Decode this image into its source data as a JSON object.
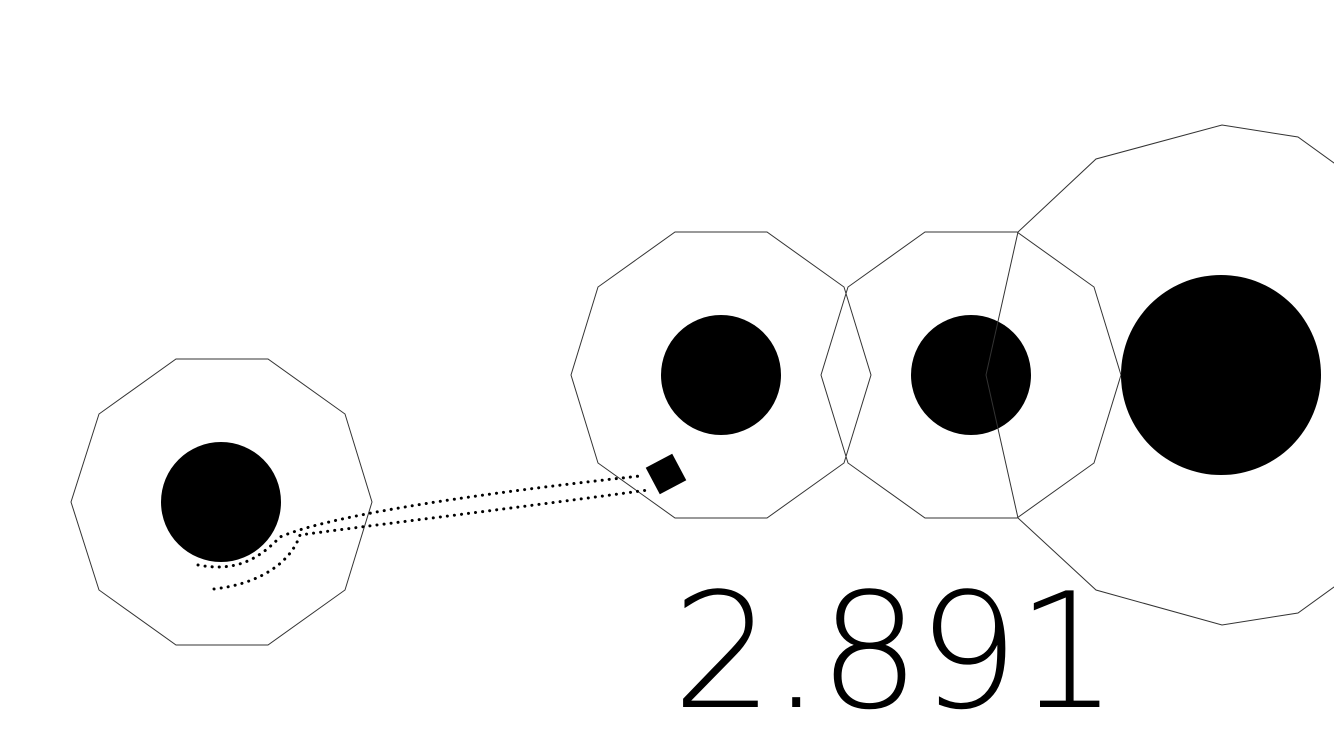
{
  "hud": {
    "score": "2.891"
  },
  "colors": {
    "background": "#ffffff",
    "ink": "#000000",
    "ring_stroke": "#333333"
  },
  "scene": {
    "planet_count": 4,
    "ring_shape": "decagon",
    "player_shape": "square",
    "trail_style": "dotted"
  }
}
